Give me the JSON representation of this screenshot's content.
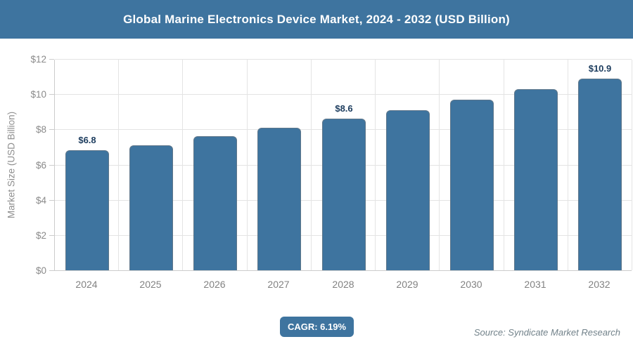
{
  "header": {
    "title": "Global Marine Electronics Device Market, 2024 - 2032 (USD Billion)"
  },
  "chart_data": {
    "type": "bar",
    "title": "Global Marine Electronics Device Market, 2024 - 2032 (USD Billion)",
    "xlabel": "",
    "ylabel": "Market Size (USD Billion)",
    "categories": [
      "2024",
      "2025",
      "2026",
      "2027",
      "2028",
      "2029",
      "2030",
      "2031",
      "2032"
    ],
    "values": [
      6.8,
      7.1,
      7.6,
      8.1,
      8.6,
      9.1,
      9.7,
      10.3,
      10.9
    ],
    "value_labels": [
      "$6.8",
      "",
      "",
      "",
      "$8.6",
      "",
      "",
      "",
      "$10.9"
    ],
    "ylim": [
      0,
      12
    ],
    "ytick_step": 2,
    "ytick_prefix": "$",
    "grid": true,
    "legend": false,
    "bar_color": "#3e749f"
  },
  "footer": {
    "cagr_label": "CAGR: 6.19%",
    "source": "Source: Syndicate Market Research"
  },
  "colors": {
    "accent": "#3e749f",
    "value_label": "#1c3c5e",
    "tick_label": "#8a8a8a",
    "grid_line": "#e4e4e4",
    "axis_line": "#cccccc",
    "source_text": "#72828a"
  }
}
